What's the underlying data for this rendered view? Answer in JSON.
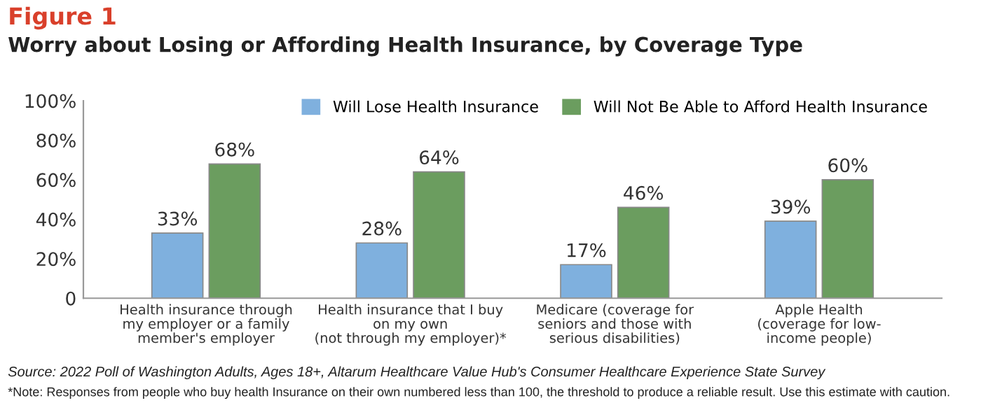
{
  "chart_data": {
    "type": "bar",
    "title": "Figure 1",
    "subtitle": "Worry about Losing or Affording Health Insurance, by Coverage Type",
    "categories": [
      "Health insurance through\nmy employer or a family\nmember's employer",
      "Health insurance that I buy\non my own\n(not through my employer)*",
      "Medicare (coverage for\nseniors and those with\nserious disabilities)",
      "Apple Health\n(coverage for low-\nincome people)"
    ],
    "series": [
      {
        "name": "Will Lose Health Insurance",
        "color": "#7fb0de",
        "values": [
          33,
          28,
          17,
          39
        ]
      },
      {
        "name": "Will Not Be Able to Afford Health Insurance",
        "color": "#6b9d5f",
        "values": [
          68,
          64,
          46,
          60
        ]
      }
    ],
    "ylim": [
      0,
      100
    ],
    "yticks": [
      {
        "value": 0,
        "label": "0"
      },
      {
        "value": 20,
        "label": "20%"
      },
      {
        "value": 40,
        "label": "40%"
      },
      {
        "value": 60,
        "label": "60%"
      },
      {
        "value": 80,
        "label": "80%"
      },
      {
        "value": 100,
        "label": "100%"
      }
    ],
    "value_labels": [
      [
        "33%",
        "28%",
        "17%",
        "39%"
      ],
      [
        "68%",
        "64%",
        "46%",
        "60%"
      ]
    ],
    "grid": false,
    "legend": "top right",
    "annotations": [
      "Source: 2022 Poll of Washington Adults, Ages 18+, Altarum Healthcare Value Hub's Consumer Healthcare Experience State Survey",
      "*Note: Responses from people who buy health Insurance on their own numbered less than 100, the threshold to produce a reliable result. Use this estimate with caution."
    ]
  }
}
